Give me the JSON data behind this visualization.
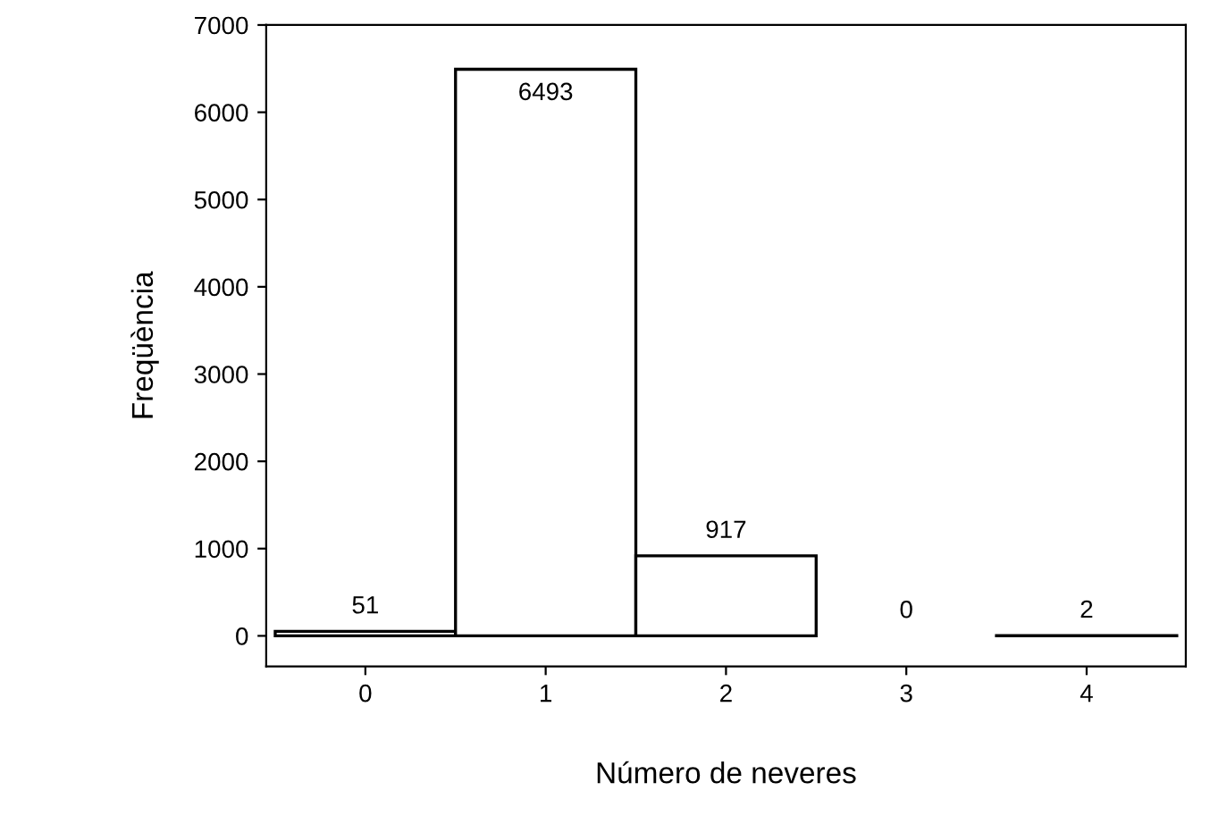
{
  "chart_data": {
    "type": "bar",
    "xlabel": "Número de neveres",
    "ylabel": "Freqüència",
    "categories": [
      "0",
      "1",
      "2",
      "3",
      "4"
    ],
    "values": [
      51,
      6493,
      917,
      0,
      2
    ],
    "color": "#ffffff",
    "ylim": [
      -350,
      7000
    ],
    "yticks": [
      0,
      1000,
      2000,
      3000,
      4000,
      5000,
      6000,
      7000
    ],
    "data_labels": true,
    "grid": false,
    "legend": false
  }
}
